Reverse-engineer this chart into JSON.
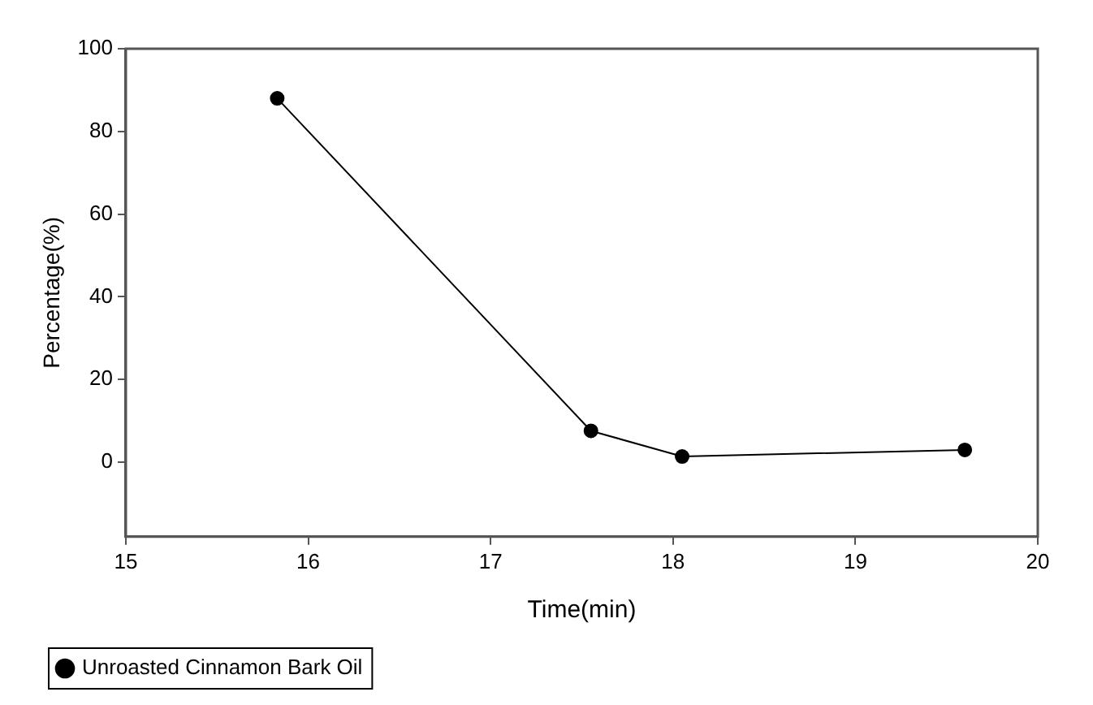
{
  "chart_data": {
    "type": "line",
    "xlabel": "Time(min)",
    "ylabel": "Percentage(%)",
    "xlim": [
      15,
      20
    ],
    "xticks": [
      15,
      16,
      17,
      18,
      19,
      20
    ],
    "ylim": [
      -18,
      100
    ],
    "yticks": [
      0,
      20,
      40,
      60,
      80,
      100
    ],
    "grid": false,
    "legend": "bottom left",
    "marker": "circle",
    "line_style": "solid",
    "series": [
      {
        "name": "Unroasted Cinnamon Bark Oil",
        "color": "#000000",
        "x": [
          15.83,
          17.55,
          18.05,
          19.6
        ],
        "values": [
          88,
          7.6,
          1.4,
          3.0
        ]
      }
    ]
  }
}
